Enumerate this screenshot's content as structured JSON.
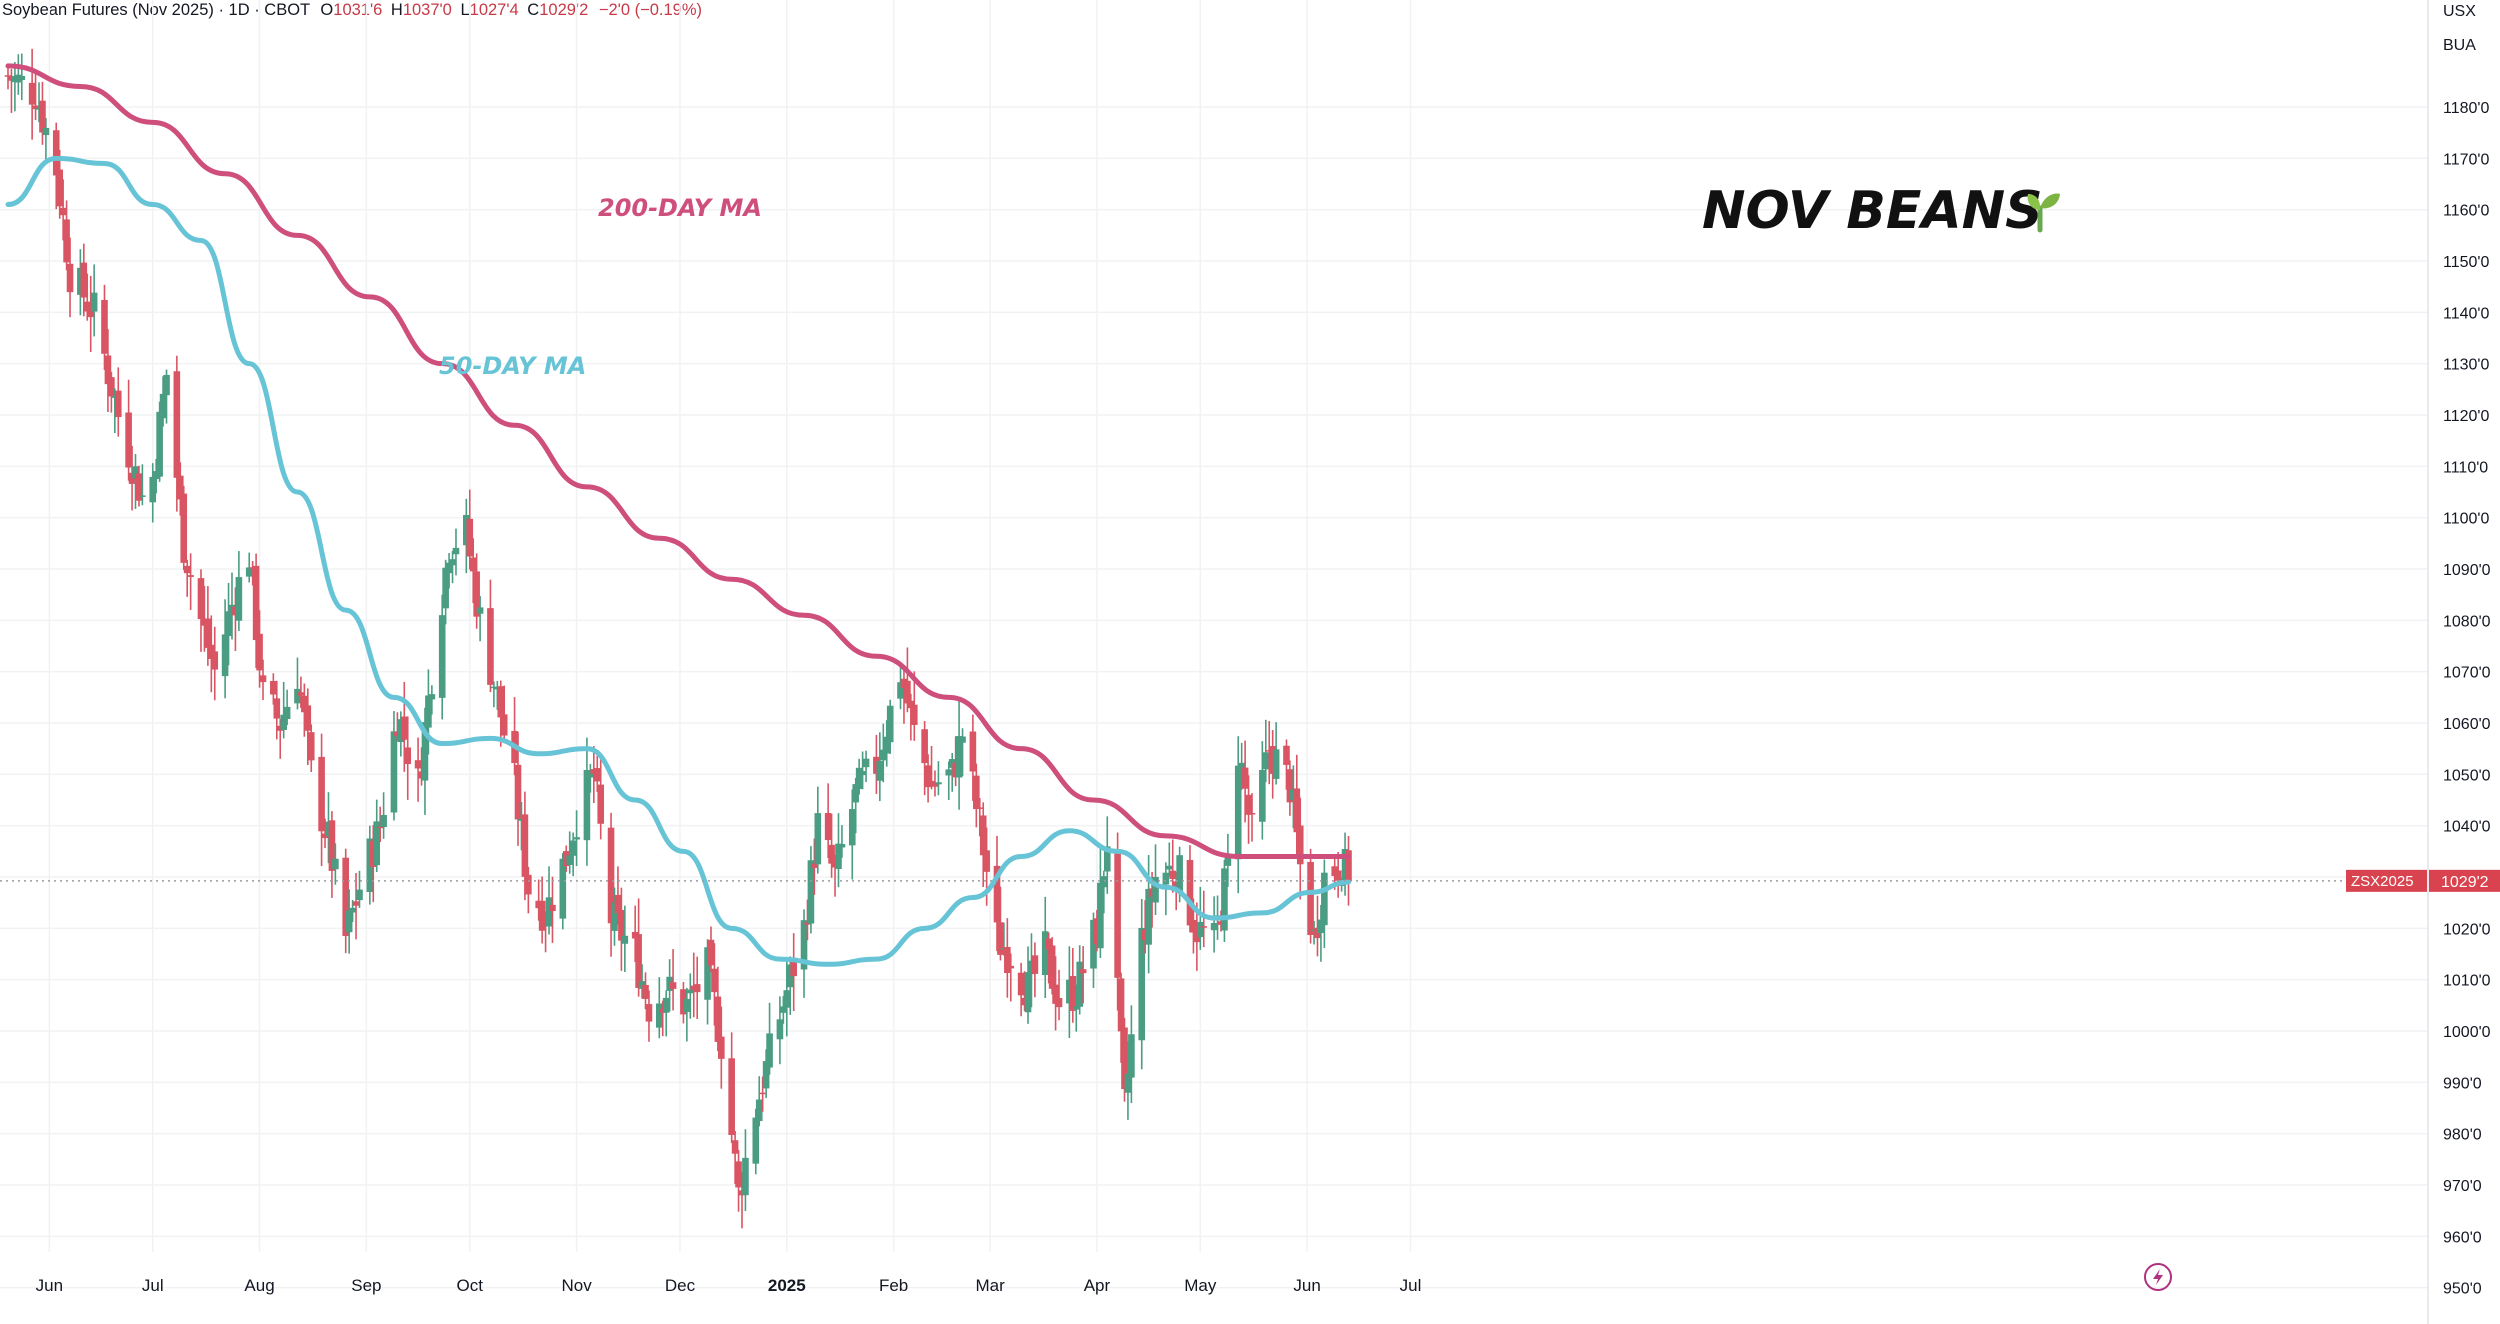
{
  "header": {
    "symbol_desc": "Soybean Futures (Nov 2025) · 1D · CBOT",
    "o_label": "O",
    "o_value": "1031'6",
    "h_label": "H",
    "h_value": "1037'0",
    "l_label": "L",
    "l_value": "1027'4",
    "c_label": "C",
    "c_value": "1029'2",
    "change": "−2'0 (−0.19%)"
  },
  "axis_header": {
    "currency": "USX",
    "unit": "BUA"
  },
  "colors": {
    "up": "#4a9c82",
    "down": "#d95563",
    "ma200": "#cf4f7c",
    "ma50": "#67c4d6",
    "grid": "#f1f2f4",
    "label_bg": "#d9434f",
    "text": "#131722"
  },
  "annotations": {
    "title": "NOV BEANS",
    "title_icon": "seedling-icon",
    "ma200_label": "200-DAY MA",
    "ma50_label": "50-DAY MA"
  },
  "price_label": {
    "symbol": "ZSX2025",
    "value": "1029'2"
  },
  "chart_data": {
    "type": "candlestick",
    "title": "Soybean Futures (Nov 2025) · 1D · CBOT",
    "ylim": [
      947,
      1190
    ],
    "y_ticks": [
      950,
      960,
      970,
      980,
      990,
      1000,
      1010,
      1020,
      1030,
      1040,
      1050,
      1060,
      1070,
      1080,
      1090,
      1100,
      1110,
      1120,
      1130,
      1140,
      1150,
      1160,
      1170,
      1180
    ],
    "y_tick_labels": [
      "950'0",
      "960'0",
      "970'0",
      "980'0",
      "990'0",
      "1000'0",
      "1010'0",
      "1020'0",
      "1030'0",
      "1040'0",
      "1050'0",
      "1060'0",
      "1070'0",
      "1080'0",
      "1090'0",
      "1100'0",
      "1110'0",
      "1120'0",
      "1130'0",
      "1140'0",
      "1150'0",
      "1160'0",
      "1170'0",
      "1180'0"
    ],
    "x_labels": [
      {
        "label": "Jun",
        "date": "2024-06-01"
      },
      {
        "label": "Jul",
        "date": "2024-07-01"
      },
      {
        "label": "Aug",
        "date": "2024-08-01"
      },
      {
        "label": "Sep",
        "date": "2024-09-01"
      },
      {
        "label": "Oct",
        "date": "2024-10-01"
      },
      {
        "label": "Nov",
        "date": "2024-11-01"
      },
      {
        "label": "Dec",
        "date": "2024-12-01"
      },
      {
        "label": "2025",
        "date": "2025-01-01",
        "bold": true
      },
      {
        "label": "Feb",
        "date": "2025-02-01"
      },
      {
        "label": "Mar",
        "date": "2025-03-01"
      },
      {
        "label": "Apr",
        "date": "2025-04-01"
      },
      {
        "label": "May",
        "date": "2025-05-01"
      },
      {
        "label": "Jun",
        "date": "2025-06-01"
      },
      {
        "label": "Jul",
        "date": "2025-07-01"
      }
    ],
    "first_date": "2024-05-20",
    "last_close": 1029.25,
    "close_path": [
      [
        "2024-05-20",
        1186
      ],
      [
        "2024-05-28",
        1183
      ],
      [
        "2024-06-03",
        1168
      ],
      [
        "2024-06-07",
        1148
      ],
      [
        "2024-06-14",
        1140
      ],
      [
        "2024-06-21",
        1120
      ],
      [
        "2024-06-28",
        1104
      ],
      [
        "2024-07-01",
        1108
      ],
      [
        "2024-07-05",
        1128
      ],
      [
        "2024-07-10",
        1095
      ],
      [
        "2024-07-15",
        1080
      ],
      [
        "2024-07-19",
        1070
      ],
      [
        "2024-07-24",
        1083
      ],
      [
        "2024-07-29",
        1093
      ],
      [
        "2024-08-02",
        1065
      ],
      [
        "2024-08-07",
        1060
      ],
      [
        "2024-08-12",
        1070
      ],
      [
        "2024-08-16",
        1050
      ],
      [
        "2024-08-21",
        1037
      ],
      [
        "2024-08-26",
        1018
      ],
      [
        "2024-08-30",
        1028
      ],
      [
        "2024-09-05",
        1040
      ],
      [
        "2024-09-10",
        1062
      ],
      [
        "2024-09-16",
        1048
      ],
      [
        "2024-09-20",
        1070
      ],
      [
        "2024-09-25",
        1095
      ],
      [
        "2024-09-30",
        1097
      ],
      [
        "2024-10-04",
        1080
      ],
      [
        "2024-10-09",
        1065
      ],
      [
        "2024-10-14",
        1048
      ],
      [
        "2024-10-18",
        1028
      ],
      [
        "2024-10-23",
        1023
      ],
      [
        "2024-10-29",
        1034
      ],
      [
        "2024-11-01",
        1042
      ],
      [
        "2024-11-06",
        1050
      ],
      [
        "2024-11-11",
        1022
      ],
      [
        "2024-11-18",
        1015
      ],
      [
        "2024-11-22",
        1005
      ],
      [
        "2024-11-27",
        1008
      ],
      [
        "2024-12-03",
        1005
      ],
      [
        "2024-12-09",
        1012
      ],
      [
        "2024-12-13",
        998
      ],
      [
        "2024-12-18",
        968
      ],
      [
        "2024-12-23",
        985
      ],
      [
        "2024-12-30",
        1003
      ],
      [
        "2025-01-06",
        1020
      ],
      [
        "2025-01-10",
        1040
      ],
      [
        "2025-01-15",
        1030
      ],
      [
        "2025-01-21",
        1046
      ],
      [
        "2025-01-27",
        1052
      ],
      [
        "2025-02-03",
        1070
      ],
      [
        "2025-02-07",
        1058
      ],
      [
        "2025-02-12",
        1048
      ],
      [
        "2025-02-18",
        1050
      ],
      [
        "2025-02-21",
        1058
      ],
      [
        "2025-02-26",
        1040
      ],
      [
        "2025-03-03",
        1018
      ],
      [
        "2025-03-07",
        1015
      ],
      [
        "2025-03-12",
        1008
      ],
      [
        "2025-03-17",
        1015
      ],
      [
        "2025-03-21",
        1006
      ],
      [
        "2025-03-26",
        1008
      ],
      [
        "2025-04-01",
        1020
      ],
      [
        "2025-04-04",
        1038
      ],
      [
        "2025-04-09",
        985
      ],
      [
        "2025-04-14",
        1018
      ],
      [
        "2025-04-18",
        1030
      ],
      [
        "2025-04-24",
        1032
      ],
      [
        "2025-04-30",
        1020
      ],
      [
        "2025-05-05",
        1017
      ],
      [
        "2025-05-09",
        1032
      ],
      [
        "2025-05-12",
        1055
      ],
      [
        "2025-05-16",
        1038
      ],
      [
        "2025-05-21",
        1055
      ],
      [
        "2025-05-27",
        1048
      ],
      [
        "2025-05-30",
        1032
      ],
      [
        "2025-06-03",
        1018
      ],
      [
        "2025-06-06",
        1030
      ],
      [
        "2025-06-11",
        1033
      ],
      [
        "2025-06-13",
        1029.25
      ]
    ],
    "series": [
      {
        "type": "line",
        "points": [
          [
            "2024-05-20",
            1188
          ],
          [
            "2024-06-10",
            1184
          ],
          [
            "2024-07-01",
            1177
          ],
          [
            "2024-07-22",
            1167
          ],
          [
            "2024-08-12",
            1155
          ],
          [
            "2024-09-02",
            1143
          ],
          [
            "2024-09-23",
            1130
          ],
          [
            "2024-10-14",
            1118
          ],
          [
            "2024-11-04",
            1106
          ],
          [
            "2024-11-25",
            1096
          ],
          [
            "2024-12-16",
            1088
          ],
          [
            "2025-01-06",
            1081
          ],
          [
            "2025-01-27",
            1073
          ],
          [
            "2025-02-17",
            1065
          ],
          [
            "2025-03-10",
            1055
          ],
          [
            "2025-03-31",
            1045
          ],
          [
            "2025-04-21",
            1038
          ],
          [
            "2025-05-12",
            1034
          ],
          [
            "2025-06-13",
            1034
          ]
        ]
      },
      {
        "type": "line",
        "points": [
          [
            "2024-05-20",
            1161
          ],
          [
            "2024-06-03",
            1170
          ],
          [
            "2024-06-17",
            1169
          ],
          [
            "2024-07-01",
            1161
          ],
          [
            "2024-07-15",
            1154
          ],
          [
            "2024-07-29",
            1130
          ],
          [
            "2024-08-12",
            1105
          ],
          [
            "2024-08-26",
            1082
          ],
          [
            "2024-09-09",
            1065
          ],
          [
            "2024-09-23",
            1056
          ],
          [
            "2024-10-07",
            1057
          ],
          [
            "2024-10-21",
            1054
          ],
          [
            "2024-11-04",
            1055
          ],
          [
            "2024-11-18",
            1045
          ],
          [
            "2024-12-02",
            1035
          ],
          [
            "2024-12-16",
            1020
          ],
          [
            "2024-12-30",
            1014
          ],
          [
            "2025-01-13",
            1013
          ],
          [
            "2025-01-27",
            1014
          ],
          [
            "2025-02-10",
            1020
          ],
          [
            "2025-02-24",
            1026
          ],
          [
            "2025-03-10",
            1034
          ],
          [
            "2025-03-24",
            1039
          ],
          [
            "2025-04-07",
            1035
          ],
          [
            "2025-04-21",
            1028
          ],
          [
            "2025-05-05",
            1022
          ],
          [
            "2025-05-19",
            1023
          ],
          [
            "2025-06-02",
            1027
          ],
          [
            "2025-06-13",
            1029
          ]
        ]
      }
    ]
  }
}
